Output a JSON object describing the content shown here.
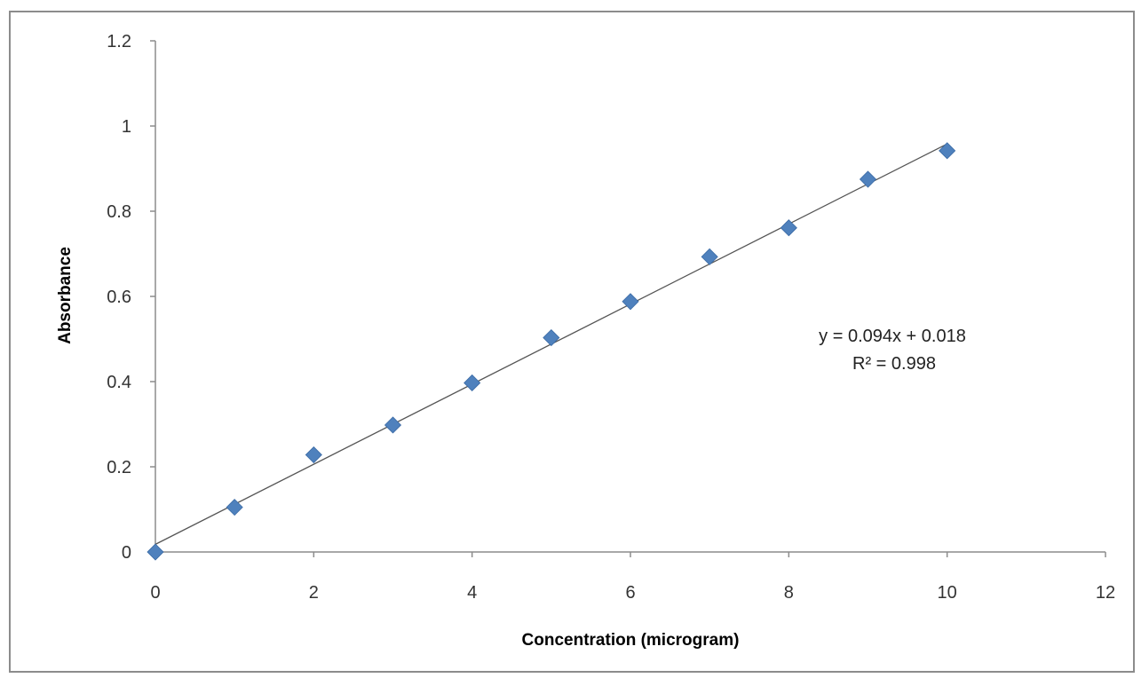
{
  "chart_data": {
    "type": "scatter",
    "title": "",
    "xlabel": "Concentration (microgram)",
    "ylabel": "Absorbance",
    "xlim": [
      0,
      12
    ],
    "ylim": [
      0,
      1.2
    ],
    "x_ticks": [
      "0",
      "2",
      "4",
      "6",
      "8",
      "10",
      "12"
    ],
    "y_ticks": [
      "0",
      "0.2",
      "0.4",
      "0.6",
      "0.8",
      "1",
      "1.2"
    ],
    "grid": false,
    "legend": "none",
    "marker": "diamond",
    "marker_color": "#4f81bd",
    "trendline_color": "#555555",
    "series": [
      {
        "x": [
          0,
          1,
          2,
          3,
          4,
          5,
          6,
          7,
          8,
          9,
          10
        ],
        "y": [
          0,
          0.105,
          0.228,
          0.298,
          0.397,
          0.503,
          0.588,
          0.693,
          0.761,
          0.875,
          0.942
        ]
      }
    ],
    "trendline": {
      "slope": 0.094,
      "intercept": 0.018,
      "x_range": [
        0,
        10
      ]
    },
    "annotations": {
      "equation": "y = 0.094x + 0.018",
      "r_squared": "R² = 0.998"
    }
  }
}
